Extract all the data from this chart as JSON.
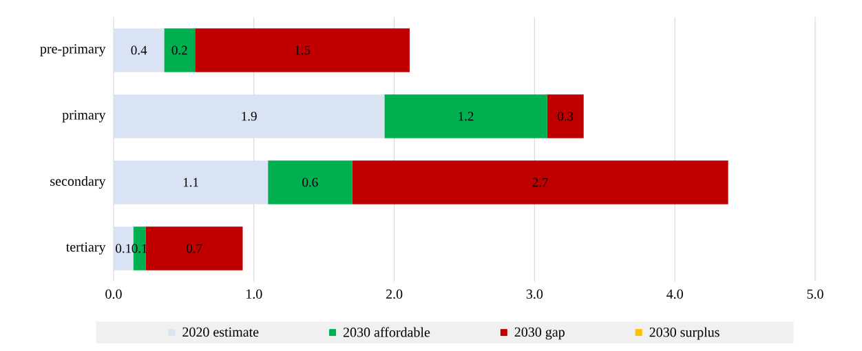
{
  "chart_data": {
    "type": "bar",
    "orientation": "horizontal",
    "stacked": true,
    "categories": [
      "pre-primary",
      "primary",
      "secondary",
      "tertiary"
    ],
    "series": [
      {
        "name": "2020 estimate",
        "color": "#dae3f3",
        "values": [
          0.36,
          1.93,
          1.1,
          0.14
        ],
        "value_labels": [
          "0.4",
          "1.9",
          "1.1",
          "0.1"
        ]
      },
      {
        "name": "2030 affordable",
        "color": "#00b050",
        "values": [
          0.22,
          1.16,
          0.6,
          0.09
        ],
        "value_labels": [
          "0.2",
          "1.2",
          "0.6",
          "0.1"
        ]
      },
      {
        "name": "2030 gap",
        "color": "#c00000",
        "values": [
          1.53,
          0.26,
          2.68,
          0.69
        ],
        "value_labels": [
          "1.5",
          "0.3",
          "2.7",
          "0.7"
        ]
      },
      {
        "name": "2030 surplus",
        "color": "#ffc000",
        "values": [
          null,
          null,
          null,
          null
        ]
      }
    ],
    "xlim": [
      0,
      5
    ],
    "xticks": [
      {
        "value": 0,
        "label": "0.0"
      },
      {
        "value": 1,
        "label": "1.0"
      },
      {
        "value": 2,
        "label": "2.0"
      },
      {
        "value": 3,
        "label": "3.0"
      },
      {
        "value": 4,
        "label": "4.0"
      },
      {
        "value": 5,
        "label": "5.0"
      }
    ],
    "grid": "x",
    "legend": "bottom"
  }
}
